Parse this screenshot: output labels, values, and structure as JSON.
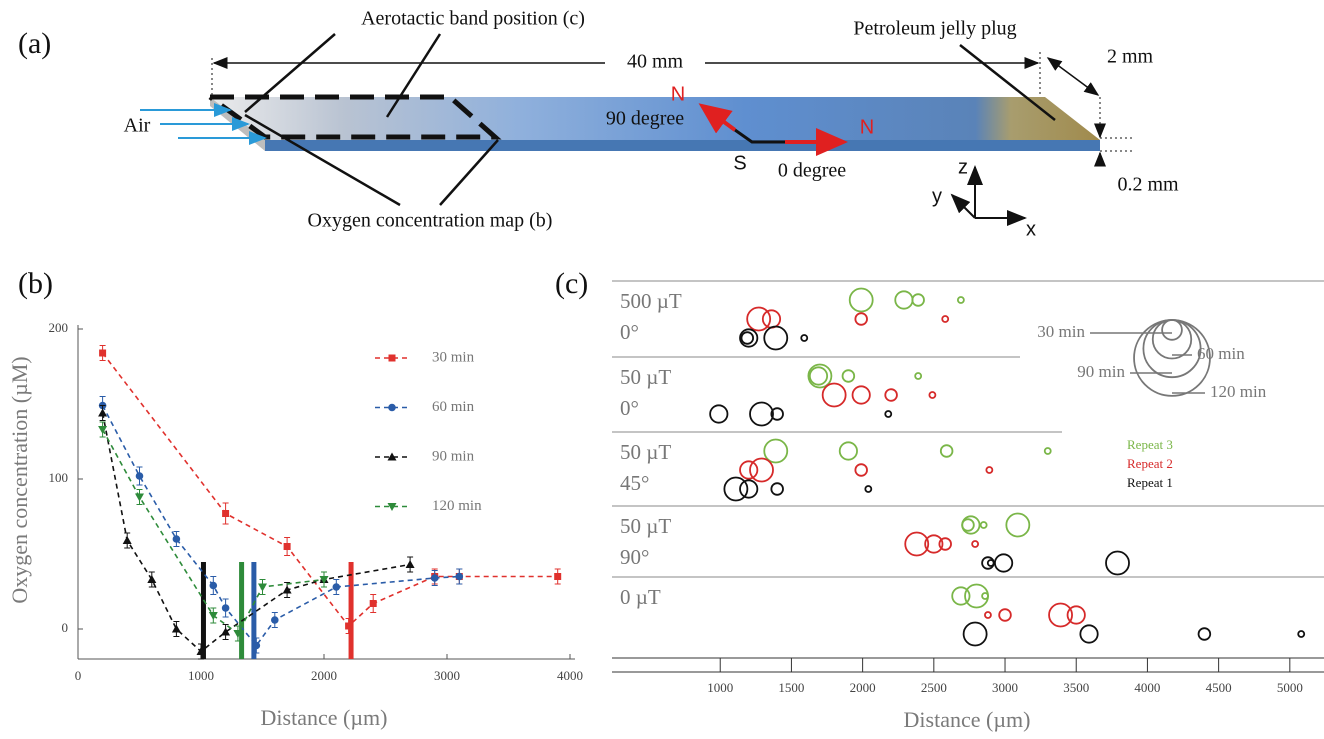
{
  "panel_a": {
    "label": "(a)",
    "band_label": "Aerotactic band position (c)",
    "plug_label": "Petroleum jelly plug",
    "length_label": "40 mm",
    "width_label": "2 mm",
    "height_label": "0.2 mm",
    "air_label": "Air",
    "map_label": "Oxygen concentration map (b)",
    "north_90": "N",
    "north_0": "N",
    "south": "S",
    "angle_90": "90 degree",
    "angle_0": "0 degree",
    "axis_x": "x",
    "axis_y": "y",
    "axis_z": "z"
  },
  "chart_data": [
    {
      "type": "line",
      "panel_label": "(b)",
      "x_label": "Distance (µm)",
      "y_label": "Oxygen concentration (µM)",
      "xlim": [
        0,
        4000
      ],
      "xticks": [
        0,
        1000,
        2000,
        3000,
        4000
      ],
      "ylim": [
        -20,
        200
      ],
      "yticks": [
        0,
        100,
        200
      ],
      "series": [
        {
          "name": "30 min",
          "color": "#e0312d",
          "marker": "square",
          "x": [
            200,
            1200,
            1700,
            2200,
            2400,
            2900,
            3100,
            3900
          ],
          "values": [
            184,
            77,
            55,
            2,
            17,
            35,
            35,
            35
          ],
          "errors": [
            5,
            7,
            6,
            5,
            6,
            5,
            5,
            5
          ]
        },
        {
          "name": "60 min",
          "color": "#2a5ca8",
          "marker": "circle",
          "x": [
            200,
            500,
            800,
            1100,
            1200,
            1450,
            1600,
            2100,
            2900,
            3100
          ],
          "values": [
            149,
            102,
            60,
            29,
            14,
            -11,
            6,
            28,
            34,
            35
          ],
          "errors": [
            6,
            6,
            5,
            6,
            6,
            5,
            5,
            5,
            5,
            5
          ]
        },
        {
          "name": "90 min",
          "color": "#111111",
          "marker": "triangle-up",
          "x": [
            200,
            400,
            600,
            800,
            1000,
            1200,
            1700,
            2000,
            2700
          ],
          "values": [
            144,
            59,
            33,
            0,
            -15,
            -2,
            26,
            33,
            43
          ],
          "errors": [
            5,
            5,
            5,
            5,
            5,
            5,
            5,
            5,
            5
          ]
        },
        {
          "name": "120 min",
          "color": "#2e8b3a",
          "marker": "triangle-down",
          "x": [
            200,
            500,
            1100,
            1300,
            1500,
            2000
          ],
          "values": [
            133,
            88,
            9,
            -3,
            28,
            33
          ],
          "errors": [
            5,
            5,
            5,
            5,
            5,
            5
          ]
        }
      ],
      "band_positions": [
        {
          "x": 1020,
          "color": "#111111"
        },
        {
          "x": 1330,
          "color": "#2e8b3a"
        },
        {
          "x": 1430,
          "color": "#2a5ca8"
        },
        {
          "x": 2220,
          "color": "#e0312d"
        }
      ]
    },
    {
      "type": "bubble",
      "panel_label": "(c)",
      "x_label": "Distance (µm)",
      "xlim": [
        240,
        5240
      ],
      "xticks": [
        1000,
        1500,
        2000,
        2500,
        3000,
        3500,
        4000,
        4500,
        5000
      ],
      "rows": [
        {
          "field": "500 µT",
          "angle": "0°"
        },
        {
          "field": "50 µT",
          "angle": "0°"
        },
        {
          "field": "50 µT",
          "angle": "45°"
        },
        {
          "field": "50 µT",
          "angle": "90°"
        },
        {
          "field": "0 µT"
        }
      ],
      "series": [
        {
          "name": "Repeat 3",
          "color": "#7ab648",
          "rows": [
            0,
            0,
            0,
            0,
            1,
            1,
            1,
            1,
            2,
            2,
            2,
            2,
            3,
            3,
            3,
            3,
            4,
            4,
            4
          ],
          "x": [
            1990,
            2290,
            2390,
            2690,
            1690,
            1700,
            1900,
            2390,
            1390,
            1900,
            2590,
            3300,
            2740,
            2760,
            2850,
            3090,
            2690,
            2800,
            2860
          ],
          "sizes": [
            120,
            90,
            60,
            30,
            90,
            120,
            60,
            30,
            120,
            90,
            60,
            30,
            60,
            90,
            30,
            120,
            90,
            120,
            30
          ]
        },
        {
          "name": "Repeat 2",
          "color": "#d62a2a",
          "rows": [
            0,
            0,
            0,
            0,
            1,
            1,
            1,
            1,
            2,
            2,
            2,
            2,
            3,
            3,
            3,
            3,
            4,
            4,
            4,
            4
          ],
          "x": [
            1270,
            1360,
            1990,
            2580,
            1800,
            1990,
            2200,
            2490,
            1200,
            1290,
            1990,
            2890,
            2380,
            2500,
            2580,
            2790,
            2880,
            3000,
            3390,
            3500
          ],
          "sizes": [
            120,
            90,
            60,
            30,
            120,
            90,
            60,
            30,
            90,
            120,
            60,
            30,
            120,
            90,
            60,
            30,
            30,
            60,
            120,
            90
          ]
        },
        {
          "name": "Repeat 1",
          "color": "#111111",
          "rows": [
            0,
            0,
            0,
            0,
            1,
            1,
            1,
            1,
            2,
            2,
            2,
            2,
            3,
            3,
            3,
            3,
            4,
            4,
            4,
            4
          ],
          "x": [
            1190,
            1200,
            1390,
            1590,
            990,
            1290,
            1400,
            2180,
            1110,
            1200,
            1400,
            2040,
            2880,
            2900,
            2990,
            3790,
            2790,
            3590,
            4400,
            5080
          ],
          "sizes": [
            60,
            90,
            120,
            30,
            90,
            120,
            60,
            30,
            120,
            90,
            60,
            30,
            60,
            30,
            90,
            120,
            120,
            90,
            60,
            30
          ]
        }
      ],
      "size_legend": {
        "sizes": [
          30,
          60,
          90,
          120
        ],
        "labels": [
          "30 min",
          "60 min",
          "90 min",
          "120 min"
        ]
      }
    }
  ]
}
